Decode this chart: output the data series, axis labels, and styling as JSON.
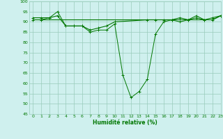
{
  "xlabel": "Humidité relative (%)",
  "xlim": [
    -0.5,
    23
  ],
  "ylim": [
    45,
    100
  ],
  "yticks": [
    45,
    50,
    55,
    60,
    65,
    70,
    75,
    80,
    85,
    90,
    95,
    100
  ],
  "xticks": [
    0,
    1,
    2,
    3,
    4,
    5,
    6,
    7,
    8,
    9,
    10,
    11,
    12,
    13,
    14,
    15,
    16,
    17,
    18,
    19,
    20,
    21,
    22,
    23
  ],
  "background_color": "#cff0ee",
  "grid_color": "#99ccbb",
  "line_color": "#007700",
  "series1_x": [
    0,
    1,
    2,
    3,
    4,
    5,
    6,
    7,
    8,
    9,
    10,
    11,
    12,
    13,
    14,
    15,
    16,
    17,
    18,
    19,
    20,
    21,
    22,
    23
  ],
  "series1_y": [
    91,
    91,
    92,
    95,
    88,
    88,
    88,
    85,
    86,
    86,
    89,
    64,
    53,
    56,
    62,
    84,
    90,
    91,
    90,
    91,
    93,
    91,
    91,
    93
  ],
  "series2_x": [
    0,
    1,
    2,
    3,
    4,
    5,
    6,
    7,
    8,
    9,
    10,
    14,
    15,
    16,
    17,
    18,
    19,
    20,
    21,
    22,
    23
  ],
  "series2_y": [
    92,
    92,
    92,
    93,
    88,
    88,
    88,
    86,
    87,
    88,
    90,
    91,
    91,
    91,
    91,
    92,
    91,
    92,
    91,
    92,
    93
  ],
  "series3_x": [
    0,
    1,
    2,
    3,
    4,
    5,
    6,
    7,
    8,
    9,
    10,
    14,
    15,
    16,
    17,
    18,
    19,
    20,
    21,
    22,
    23
  ],
  "series3_y": [
    91,
    91,
    91,
    91,
    91,
    91,
    91,
    91,
    91,
    91,
    91,
    91,
    91,
    91,
    91,
    91,
    91,
    91,
    91,
    91,
    93
  ]
}
